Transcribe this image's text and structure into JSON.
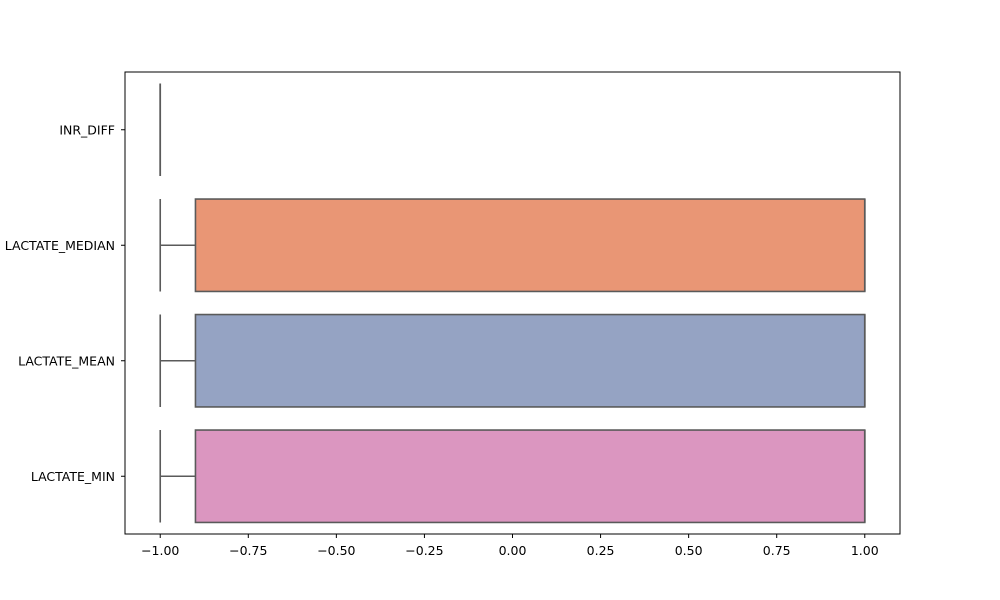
{
  "chart_data": {
    "type": "boxplot",
    "orientation": "horizontal",
    "title": "",
    "xlabel": "",
    "ylabel": "",
    "xlim": [
      -1.1,
      1.1
    ],
    "x_ticks": [
      {
        "value": -1.0,
        "label": "−1.00"
      },
      {
        "value": -0.75,
        "label": "−0.75"
      },
      {
        "value": -0.5,
        "label": "−0.50"
      },
      {
        "value": -0.25,
        "label": "−0.25"
      },
      {
        "value": 0.0,
        "label": "0.00"
      },
      {
        "value": 0.25,
        "label": "0.25"
      },
      {
        "value": 0.5,
        "label": "0.50"
      },
      {
        "value": 0.75,
        "label": "0.75"
      },
      {
        "value": 1.0,
        "label": "1.00"
      }
    ],
    "categories": [
      "INR_DIFF",
      "LACTATE_MEDIAN",
      "LACTATE_MEAN",
      "LACTATE_MIN"
    ],
    "boxes": [
      {
        "category": "INR_DIFF",
        "whisker_low": -1.0,
        "q1": -1.0,
        "median": -1.0,
        "q3": -1.0,
        "whisker_high": -1.0,
        "color": "#66c2a5"
      },
      {
        "category": "LACTATE_MEDIAN",
        "whisker_low": -1.0,
        "q1": -0.9,
        "median": 1.0,
        "q3": 1.0,
        "whisker_high": 1.0,
        "color": "#e99675"
      },
      {
        "category": "LACTATE_MEAN",
        "whisker_low": -1.0,
        "q1": -0.9,
        "median": 1.0,
        "q3": 1.0,
        "whisker_high": 1.0,
        "color": "#95a3c3"
      },
      {
        "category": "LACTATE_MIN",
        "whisker_low": -1.0,
        "q1": -0.9,
        "median": 1.0,
        "q3": 1.0,
        "whisker_high": 1.0,
        "color": "#db96c0"
      }
    ],
    "line_color": "#5a5a5a",
    "grid": false,
    "legend": "none"
  }
}
